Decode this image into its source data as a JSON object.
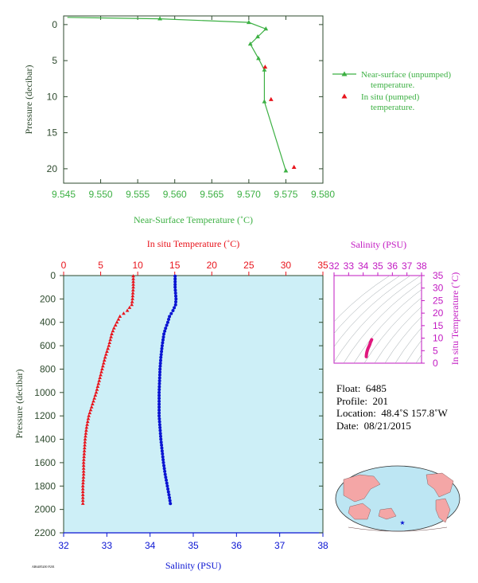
{
  "top_chart": {
    "xlabel": "Near-Surface Temperature (˚C)",
    "ylabel": "Pressure (decibar)",
    "x_ticks": [
      "9.545",
      "9.550",
      "9.555",
      "9.560",
      "9.565",
      "9.570",
      "9.575",
      "9.580"
    ],
    "y_ticks": [
      "0",
      "5",
      "10",
      "15",
      "20"
    ],
    "legend": [
      {
        "line1": "Near-surface (unpumped)",
        "line2": "temperature."
      },
      {
        "line1": "In situ (pumped)",
        "line2": "temperature."
      }
    ]
  },
  "main_chart": {
    "top_axis_label": "In situ Temperature (˚C)",
    "bottom_axis_label": "Salinity (PSU)",
    "ylabel": "Pressure (decibar)",
    "temp_ticks": [
      "0",
      "5",
      "10",
      "15",
      "20",
      "25",
      "30",
      "35"
    ],
    "sal_ticks": [
      "32",
      "33",
      "34",
      "35",
      "36",
      "37",
      "38"
    ],
    "y_ticks": [
      "0",
      "200",
      "400",
      "600",
      "800",
      "1000",
      "1200",
      "1400",
      "1600",
      "1800",
      "2000",
      "2200"
    ]
  },
  "ts_chart": {
    "title": "Salinity (PSU)",
    "ylabel": "In situ Temperature (˚C)",
    "x_ticks": [
      "32",
      "33",
      "34",
      "35",
      "36",
      "37",
      "38"
    ],
    "y_ticks": [
      "0",
      "5",
      "10",
      "15",
      "20",
      "25",
      "30",
      "35"
    ]
  },
  "float_info": {
    "float_label": "Float:",
    "float_value": "6485",
    "profile_label": "Profile:",
    "profile_value": "201",
    "location_label": "Location:",
    "location_value": "48.4˚S  157.8˚W",
    "date_label": "Date:",
    "date_value": "08/21/2015"
  },
  "footer_tag": "AR6485200 P201",
  "colors": {
    "near_surface": "#3cb043",
    "temperature": "#e8141c",
    "salinity": "#0a14d2",
    "ts": "#e0187e",
    "plot_bg": "#cdeff7",
    "ts_frame": "#c21ac2",
    "axis_dark": "#2e4a2e"
  },
  "chart_data": [
    {
      "type": "line",
      "name": "near-surface temperature",
      "xlim": [
        9.545,
        9.58
      ],
      "ylim": [
        0,
        22
      ],
      "y_inverted": true,
      "series": [
        {
          "name": "Near-surface (unpumped) temperature.",
          "x": [
            9.5455,
            9.558,
            9.57,
            9.5723,
            9.5712,
            9.5702,
            9.5713,
            9.5721,
            9.5721,
            9.575
          ],
          "y": [
            -1.0,
            -0.8,
            -0.3,
            0.6,
            1.7,
            2.7,
            4.7,
            6.3,
            10.7,
            20.3
          ]
        },
        {
          "name": "In situ (pumped) temperature.",
          "x": [
            9.5722,
            9.573,
            9.5761
          ],
          "y": [
            5.9,
            10.4,
            19.8
          ]
        }
      ]
    },
    {
      "type": "scatter",
      "name": "pressure profile",
      "ylim": [
        0,
        2200
      ],
      "y_inverted": true,
      "temperature_xlim": [
        0,
        35
      ],
      "salinity_xlim": [
        32,
        38
      ],
      "series": [
        {
          "name": "In situ Temperature (˚C)",
          "pressure": [
            5,
            100,
            200,
            250,
            300,
            350,
            400,
            450,
            500,
            600,
            700,
            800,
            900,
            1000,
            1100,
            1200,
            1300,
            1400,
            1500,
            1600,
            1700,
            1800,
            1900,
            1950
          ],
          "values": [
            9.4,
            9.4,
            9.3,
            9.2,
            8.6,
            7.6,
            7.2,
            6.8,
            6.5,
            6.1,
            5.6,
            5.2,
            4.8,
            4.4,
            3.9,
            3.4,
            3.1,
            2.9,
            2.8,
            2.7,
            2.7,
            2.6,
            2.6,
            2.6
          ]
        },
        {
          "name": "Salinity (PSU)",
          "pressure": [
            5,
            100,
            200,
            250,
            300,
            350,
            400,
            450,
            500,
            600,
            700,
            800,
            900,
            1000,
            1100,
            1200,
            1300,
            1400,
            1500,
            1600,
            1700,
            1800,
            1900,
            1950
          ],
          "values": [
            34.58,
            34.58,
            34.6,
            34.59,
            34.53,
            34.45,
            34.41,
            34.36,
            34.32,
            34.28,
            34.25,
            34.23,
            34.22,
            34.21,
            34.21,
            34.21,
            34.23,
            34.25,
            34.28,
            34.31,
            34.35,
            34.4,
            34.45,
            34.47
          ]
        }
      ]
    },
    {
      "type": "scatter",
      "name": "T-S diagram",
      "xlim": [
        32,
        38
      ],
      "ylim": [
        0,
        35
      ],
      "series": [
        {
          "name": "T-S",
          "x": [
            34.21,
            34.22,
            34.25,
            34.3,
            34.36,
            34.41,
            34.46,
            34.5,
            34.55,
            34.58
          ],
          "y": [
            2.6,
            3.4,
            4.4,
            5.4,
            6.3,
            6.9,
            7.6,
            8.4,
            9.0,
            9.4
          ]
        }
      ]
    }
  ]
}
